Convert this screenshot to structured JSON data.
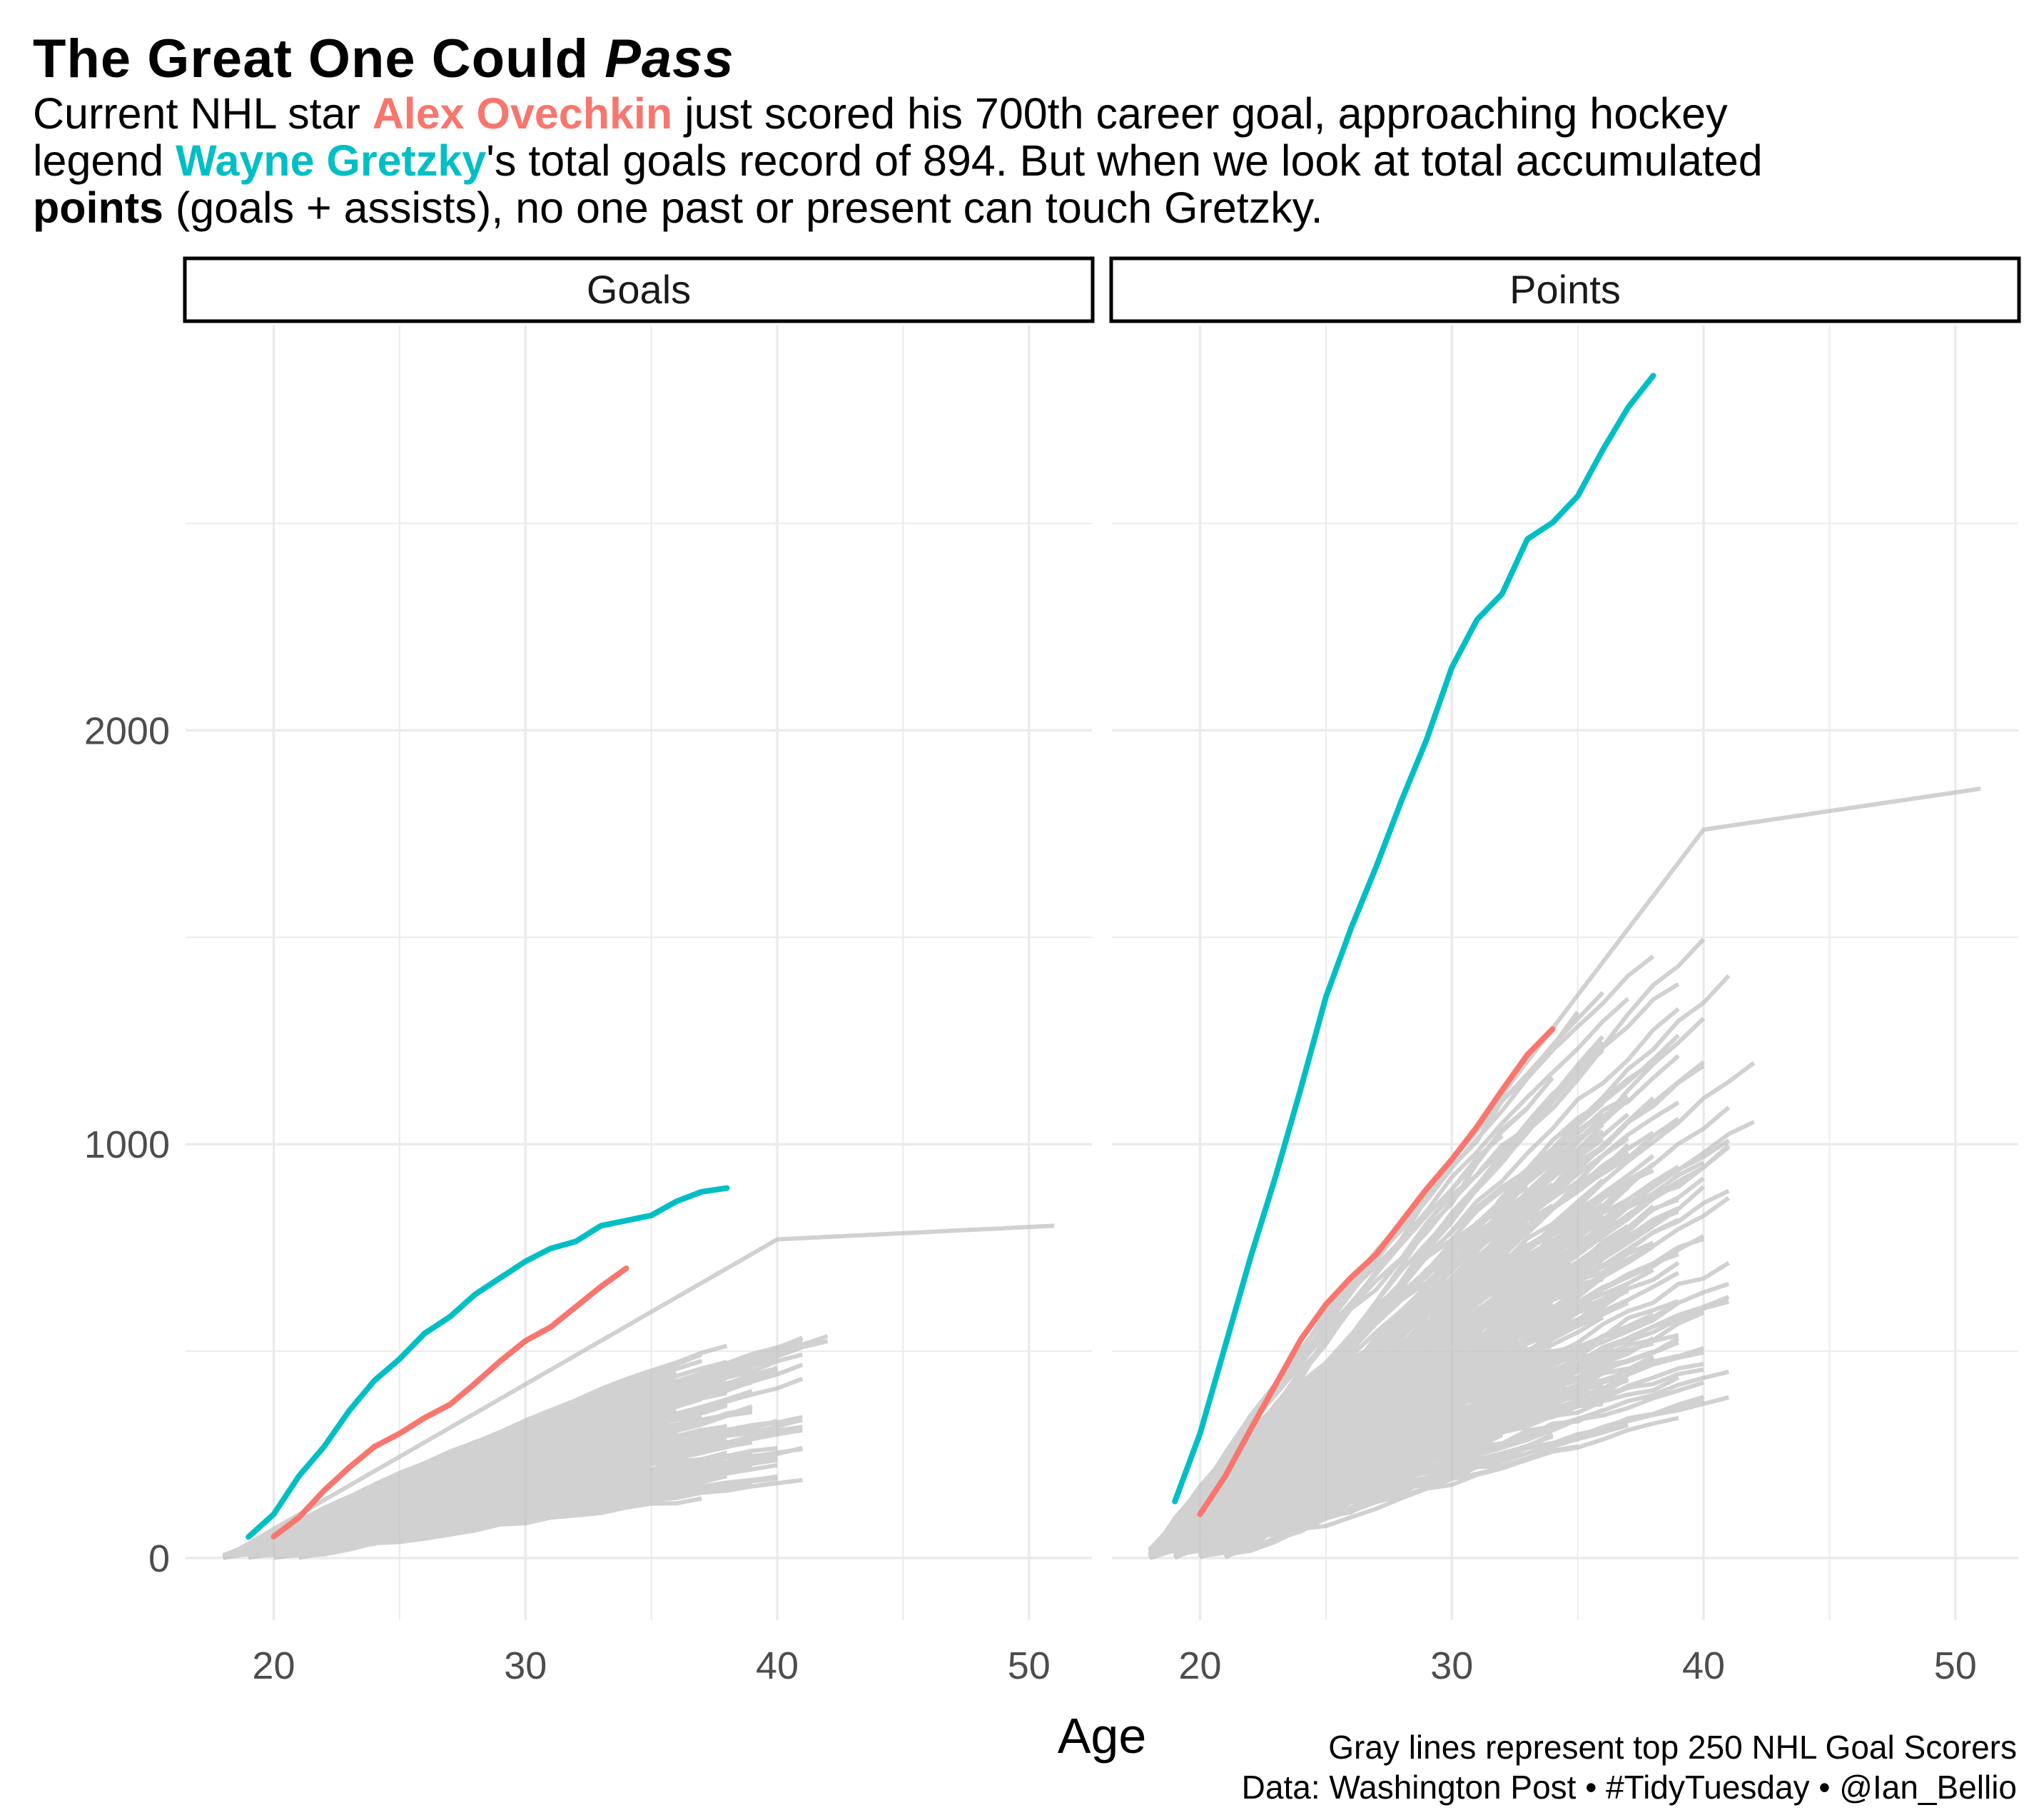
{
  "title": {
    "main": "The Great One Could",
    "emphasis": "Pass"
  },
  "subtitle": {
    "line1_pre": "Current NHL star ",
    "ovechkin": "Alex Ovechkin",
    "line1_post": " just scored his 700th career goal, approaching hockey",
    "line2_pre": "legend ",
    "gretzky": "Wayne Gretzky",
    "line2_post": "'s total goals record of 894. But when we look at total accumulated",
    "line3_bold": "points",
    "line3_post": " (goals + assists), no one past or present can touch Gretzky."
  },
  "caption": {
    "line1": "Gray lines represent top 250 NHL Goal Scorers",
    "line2": "Data: Washington Post • #TidyTuesday • @Ian_Bellio"
  },
  "colors": {
    "ovechkin": "#F8766D",
    "gretzky": "#00BFC4",
    "others": "#BEBEBE",
    "grid": "#EBEBEB",
    "axis_text": "#4D4D4D"
  },
  "chart_data": {
    "type": "line",
    "xlabel": "Age",
    "ylabel": "",
    "xlim": [
      16.5,
      52.5
    ],
    "ylim": [
      -150,
      2980
    ],
    "x_ticks": [
      20,
      30,
      40,
      50
    ],
    "y_ticks": [
      0,
      1000,
      2000
    ],
    "grid": true,
    "legend": "none",
    "facets": [
      {
        "label": "Goals",
        "series": [
          {
            "name": "Wayne Gretzky",
            "x": [
              19,
              20,
              21,
              22,
              23,
              24,
              25,
              26,
              27,
              28,
              29,
              30,
              31,
              32,
              33,
              35,
              36,
              37,
              38
            ],
            "y": [
              51,
              106,
              198,
              269,
              356,
              429,
              481,
              543,
              583,
              637,
              677,
              717,
              748,
              765,
              803,
              828,
              862,
              885,
              894
            ]
          },
          {
            "name": "Alex Ovechkin",
            "x": [
              20,
              21,
              22,
              23,
              24,
              25,
              26,
              27,
              28,
              29,
              30,
              31,
              32,
              33,
              34
            ],
            "y": [
              52,
              98,
              163,
              219,
              269,
              301,
              339,
              371,
              422,
              476,
              525,
              558,
              607,
              656,
              700
            ]
          }
        ]
      },
      {
        "label": "Points",
        "series": [
          {
            "name": "Wayne Gretzky",
            "x": [
              19,
              20,
              21,
              22,
              23,
              24,
              25,
              26,
              27,
              28,
              29,
              30,
              31,
              32,
              33,
              34,
              35,
              36,
              37,
              38
            ],
            "y": [
              137,
              301,
              513,
              725,
              922,
              1134,
              1356,
              1522,
              1671,
              1830,
              1978,
              2152,
              2267,
              2330,
              2462,
              2502,
              2566,
              2678,
              2780,
              2857
            ]
          },
          {
            "name": "Alex Ovechkin",
            "x": [
              20,
              21,
              22,
              23,
              24,
              25,
              26,
              27,
              28,
              29,
              30,
              31,
              32,
              33,
              34
            ],
            "y": [
              106,
              198,
              310,
              419,
              528,
              613,
              678,
              734,
              813,
              892,
              963,
              1042,
              1131,
              1216,
              1278
            ]
          }
        ]
      }
    ]
  }
}
